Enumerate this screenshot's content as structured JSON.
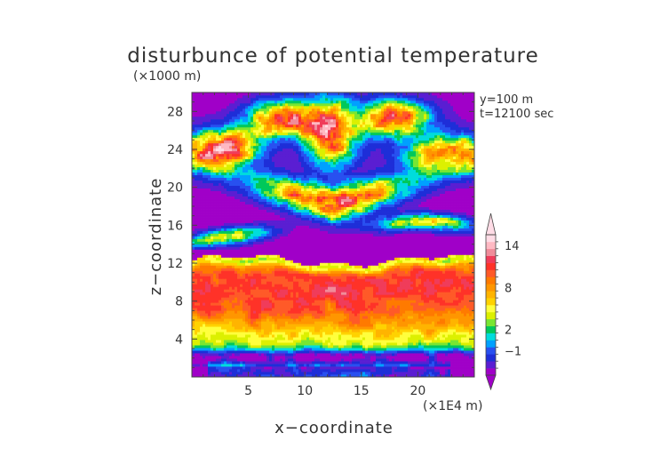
{
  "chart_data": {
    "type": "heatmap",
    "title": "disturbunce of potential temperature",
    "y_unit": "(×1000 m)",
    "x_unit": "(×1E4 m)",
    "xlabel": "x−coordinate",
    "ylabel": "z−coordinate",
    "annotations": [
      "y=100 m",
      "t=12100 sec"
    ],
    "x_ticks": [
      5,
      10,
      15,
      20
    ],
    "y_ticks": [
      4,
      8,
      12,
      16,
      20,
      24,
      28
    ],
    "xlim": [
      0,
      25
    ],
    "ylim": [
      0,
      30
    ],
    "colorbar": {
      "tick_labels": [
        "14",
        "8",
        "2",
        "−1"
      ],
      "tick_values": [
        14,
        8,
        2,
        -1
      ],
      "levels": [
        -4,
        -3,
        -2,
        -1,
        0,
        1,
        2,
        3,
        4,
        5,
        6,
        7,
        8,
        9,
        10,
        11,
        12,
        13,
        14,
        16
      ],
      "colors": [
        "#a000c8",
        "#5a1ed2",
        "#1e2ed8",
        "#2850f0",
        "#00a0ff",
        "#00dcdc",
        "#00c85a",
        "#78e632",
        "#dcf000",
        "#ffff3c",
        "#ffd200",
        "#ffb400",
        "#ff9600",
        "#ff7a00",
        "#ff5a28",
        "#ff3228",
        "#f03c5a",
        "#f08c9a",
        "#ffb9c3",
        "#ffdce6"
      ],
      "extend": "both"
    },
    "field_description": "Contour-filled field; background value near -3 (purple); stable warm layer z≈1-12 km with maximum ~12 near z≈9-11; cold belt at z≈2 km and z≈12.5 km; warm patches aloft near z≈15-17, 18-22, 22-26 and 26-30 km."
  }
}
